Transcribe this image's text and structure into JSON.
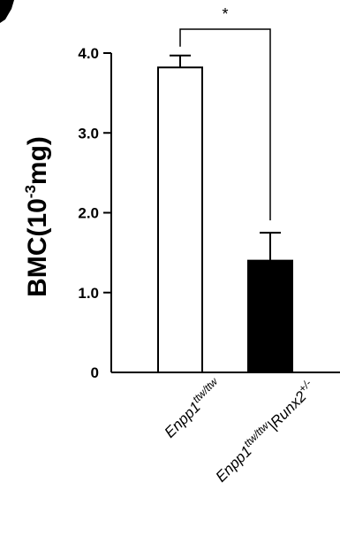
{
  "chart_data": {
    "type": "bar",
    "title": "",
    "ylabel": {
      "main": "BMC(10",
      "exp": "-3",
      "unit": "mg)"
    },
    "ylim": [
      0,
      4.0
    ],
    "yticks": [
      {
        "value": 0,
        "label": "0"
      },
      {
        "value": 1.0,
        "label": "1.0"
      },
      {
        "value": 2.0,
        "label": "2.0"
      },
      {
        "value": 3.0,
        "label": "3.0"
      },
      {
        "value": 4.0,
        "label": "4.0"
      }
    ],
    "categories": [
      {
        "base": "Enpp1",
        "sup": "ttw/ttw",
        "suffix": "",
        "suffix_sup": ""
      },
      {
        "base": "Enpp1",
        "sup": "ttw/ttw",
        "suffix": "|Runx2",
        "suffix_sup": "+/-"
      }
    ],
    "values": [
      3.82,
      1.4
    ],
    "errors": [
      0.15,
      0.35
    ],
    "bar_fills": [
      "#ffffff",
      "#000000"
    ],
    "significance": "*"
  }
}
